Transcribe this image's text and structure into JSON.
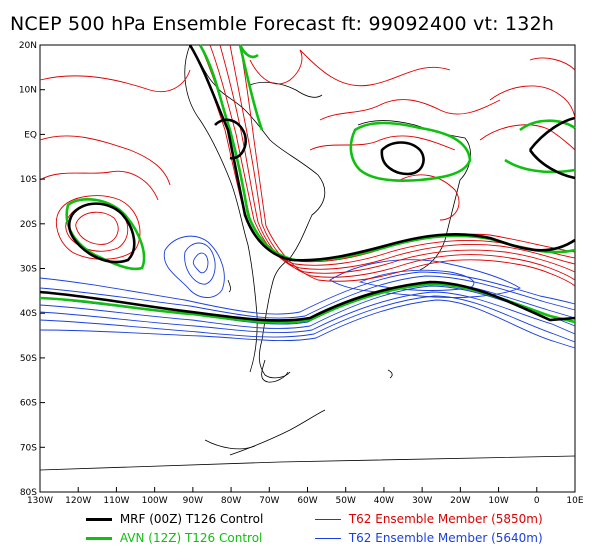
{
  "title": "NCEP 500 hPa Ensemble Forecast   ft: 99092400 vt: 132h",
  "lat_labels": [
    "20N",
    "10N",
    "EQ",
    "10S",
    "20S",
    "30S",
    "40S",
    "50S",
    "60S",
    "70S",
    "80S"
  ],
  "lon_labels": [
    "130W",
    "120W",
    "110W",
    "100W",
    "90W",
    "80W",
    "70W",
    "60W",
    "50W",
    "40W",
    "30W",
    "20W",
    "10W",
    "0",
    "10E"
  ],
  "legend": [
    {
      "label": "MRF (00Z) T126 Control",
      "color": "#000000",
      "width": 3
    },
    {
      "label": "T62 Ensemble Member (5850m)",
      "color": "#e00000",
      "width": 1
    },
    {
      "label": "AVN (12Z) T126 Control",
      "color": "#10c010",
      "width": 3
    },
    {
      "label": "T62 Ensemble Member (5640m)",
      "color": "#1a3fe0",
      "width": 1
    }
  ],
  "colors": {
    "mrf": "#000000",
    "avn": "#10c010",
    "ens_5850": "#e00000",
    "ens_5640": "#1a3fe0",
    "coast": "#000000"
  }
}
